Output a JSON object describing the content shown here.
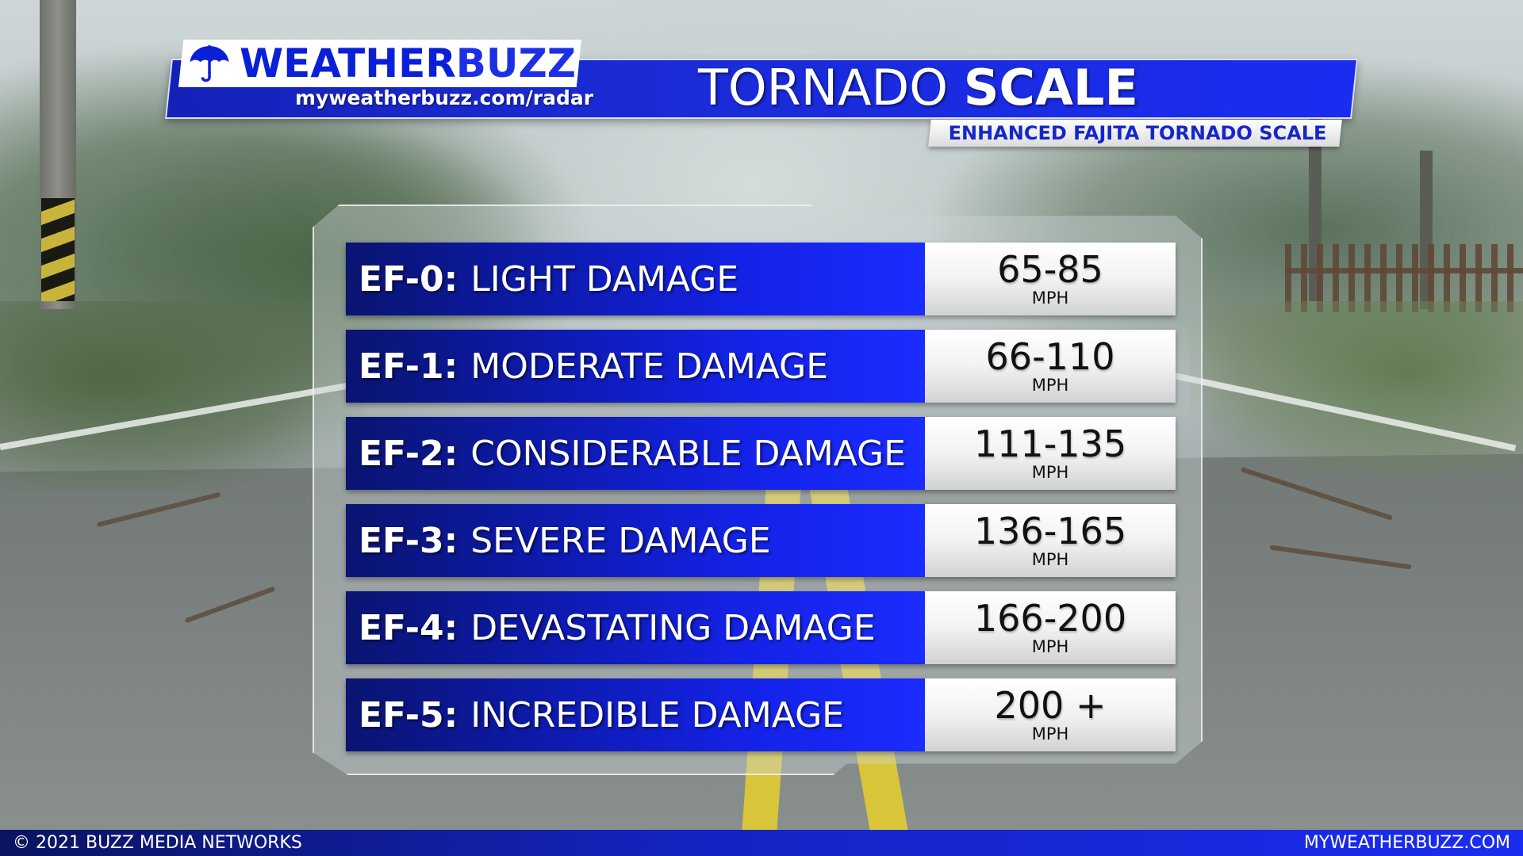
{
  "brand": {
    "logo_word_1": "WEATHER",
    "logo_word_2": "BUZZ",
    "url": "myweatherbuzz.com/radar",
    "logo_icon": "umbrella-icon"
  },
  "header": {
    "title_part_1": "TORNADO ",
    "title_part_2": "SCALE",
    "subtitle": "ENHANCED FAJITA TORNADO SCALE"
  },
  "scale": {
    "rows": [
      {
        "code": "EF-0",
        "description": "LIGHT DAMAGE",
        "speed": "65-85",
        "unit": "MPH"
      },
      {
        "code": "EF-1",
        "description": "MODERATE DAMAGE",
        "speed": "66-110",
        "unit": "MPH"
      },
      {
        "code": "EF-2",
        "description": "CONSIDERABLE DAMAGE",
        "speed": "111-135",
        "unit": "MPH"
      },
      {
        "code": "EF-3",
        "description": "SEVERE DAMAGE",
        "speed": "136-165",
        "unit": "MPH"
      },
      {
        "code": "EF-4",
        "description": "DEVASTATING DAMAGE",
        "speed": "166-200",
        "unit": "MPH"
      },
      {
        "code": "EF-5",
        "description": "INCREDIBLE DAMAGE",
        "speed": "200 +",
        "unit": "MPH"
      }
    ]
  },
  "footer": {
    "copyright": "© 2021 BUZZ MEDIA NETWORKS",
    "site": "MYWEATHERBUZZ.COM"
  },
  "colors": {
    "brand_blue": "#1a2cf0",
    "dark_blue": "#0a1470",
    "road_line_yellow": "#d8c53a"
  }
}
